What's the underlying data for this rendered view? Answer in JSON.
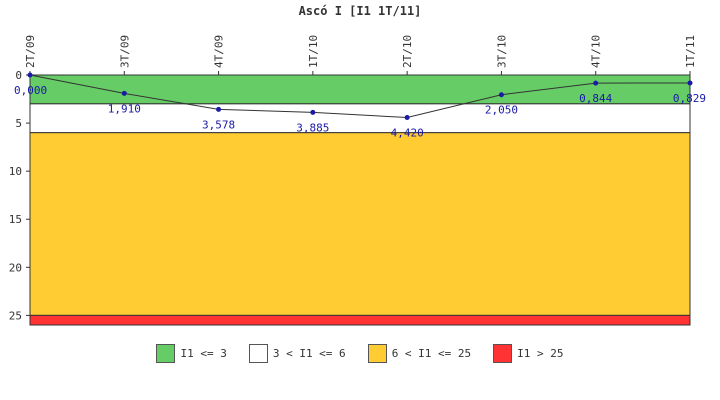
{
  "chart_data": {
    "type": "line",
    "title": "Ascó I [I1 1T/11]",
    "categories": [
      "2T/09",
      "3T/09",
      "4T/09",
      "1T/10",
      "2T/10",
      "3T/10",
      "4T/10",
      "1T/11"
    ],
    "values": [
      0,
      1.91,
      3.578,
      3.885,
      4.42,
      2.05,
      0.844,
      0.829
    ],
    "value_labels": [
      "0,000",
      "1,910",
      "3,578",
      "3,885",
      "4,420",
      "2,050",
      "0,844",
      "0,829"
    ],
    "y_ticks": [
      "0",
      "5",
      "10",
      "15",
      "20",
      "25"
    ],
    "ylim": [
      0,
      26
    ],
    "y_inverted": true,
    "bands": [
      {
        "from": 0,
        "to": 3,
        "color": "#66cc66",
        "label": "I1 <= 3"
      },
      {
        "from": 3,
        "to": 6,
        "color": "#ffffff",
        "label": "3 < I1 <= 6"
      },
      {
        "from": 6,
        "to": 25,
        "color": "#ffcc33",
        "label": "6 < I1 <= 25"
      },
      {
        "from": 25,
        "to": 26,
        "color": "#ff3333",
        "label": "I1 > 25"
      }
    ],
    "line_color": "#333333",
    "marker_color": "#1a1aa6"
  }
}
